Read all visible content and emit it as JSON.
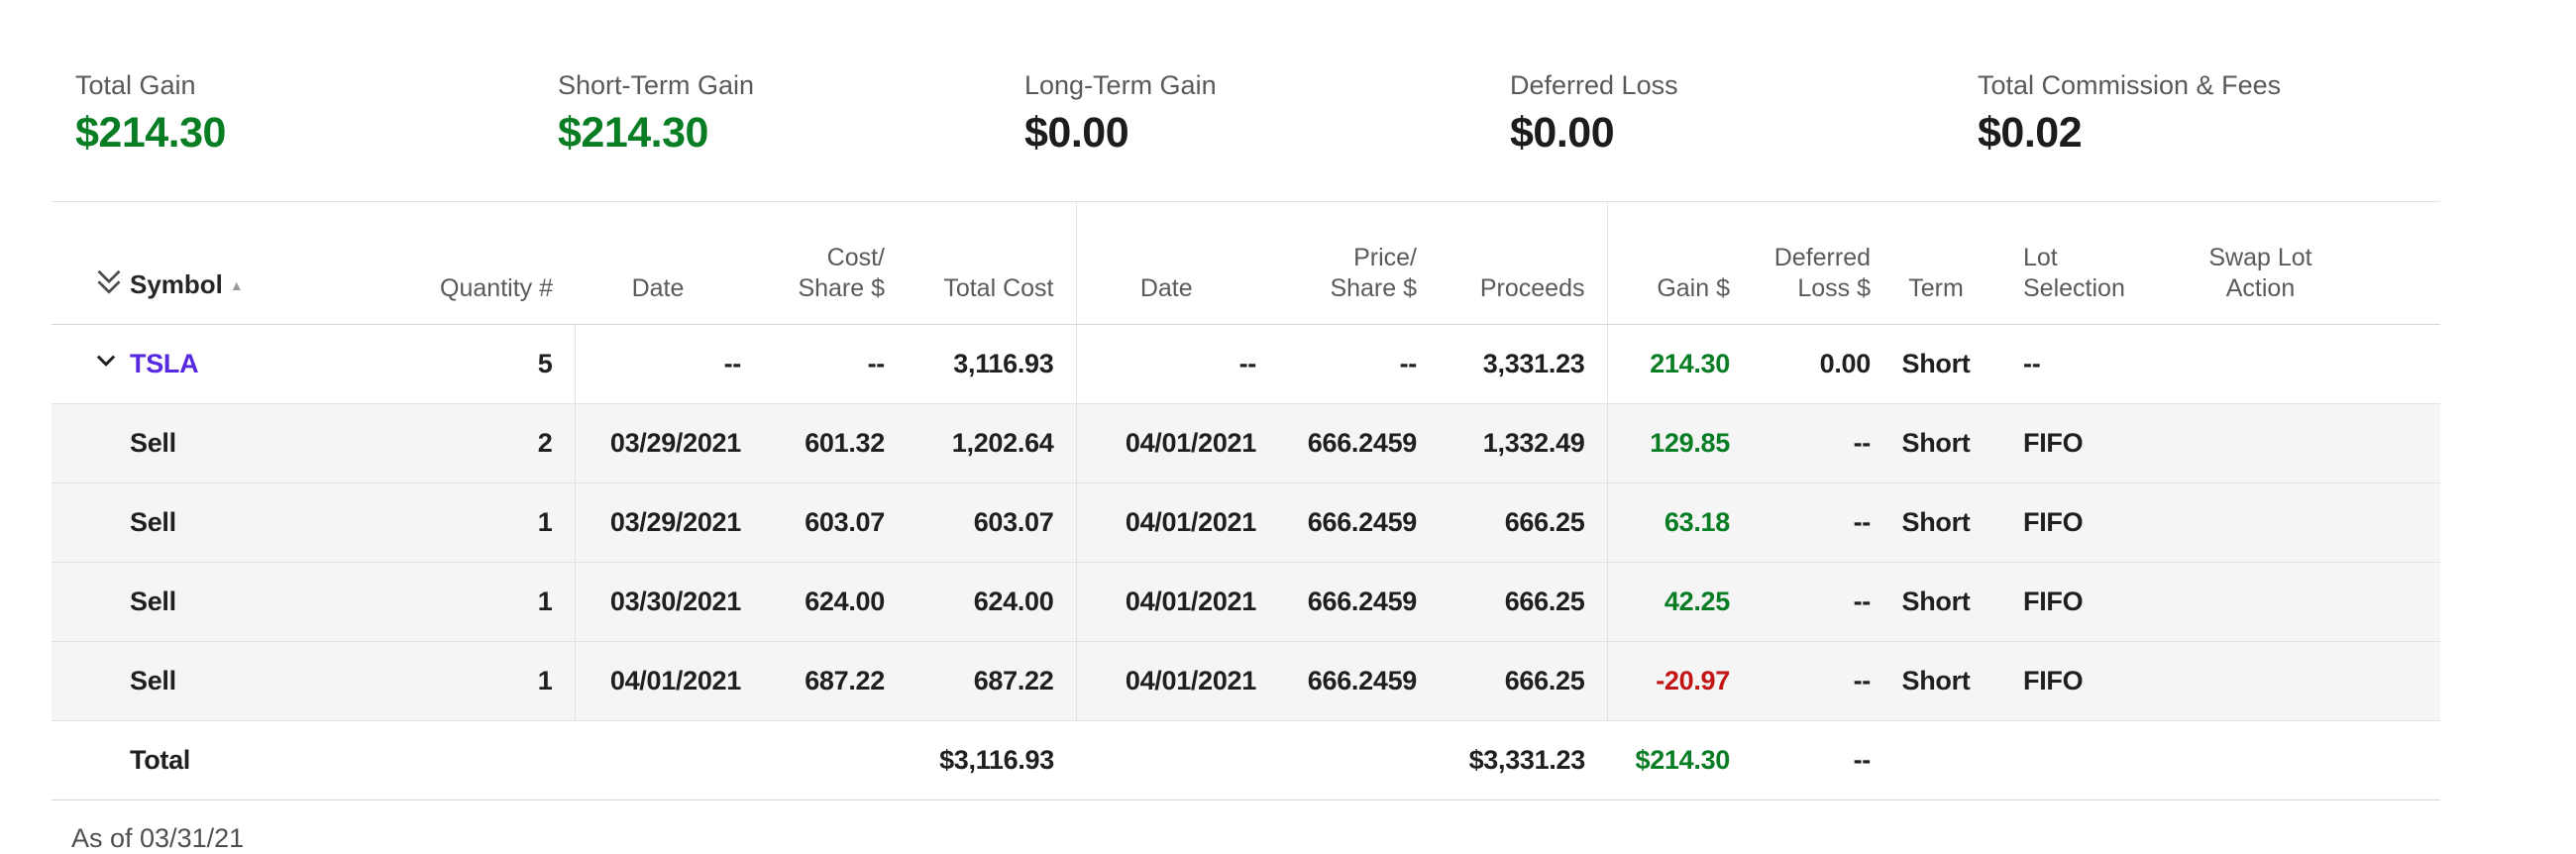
{
  "summary": {
    "items": [
      {
        "label": "Total Gain",
        "value": "$214.30",
        "tone": "positive"
      },
      {
        "label": "Short-Term Gain",
        "value": "$214.30",
        "tone": "positive"
      },
      {
        "label": "Long-Term Gain",
        "value": "$0.00",
        "tone": "neutral"
      },
      {
        "label": "Deferred Loss",
        "value": "$0.00",
        "tone": "neutral"
      },
      {
        "label": "Total Commission & Fees",
        "value": "$0.02",
        "tone": "neutral"
      }
    ]
  },
  "table": {
    "headers": [
      "Symbol",
      "Quantity #",
      "Date",
      "Cost/\nShare $",
      "Total Cost",
      "Date",
      "Price/\nShare $",
      "Proceeds",
      "Gain $",
      "Deferred\nLoss $",
      "Term",
      "Lot\nSelection",
      "Swap Lot\nAction"
    ],
    "sort": {
      "column": "Symbol",
      "direction": "asc"
    },
    "rows": [
      {
        "type": "symbol",
        "symbol": "TSLA",
        "expanded": true,
        "cells": [
          "TSLA",
          "5",
          "--",
          "--",
          "3,116.93",
          "--",
          "--",
          "3,331.23",
          "214.30",
          "0.00",
          "Short",
          "--",
          ""
        ],
        "gain_tone": "positive"
      },
      {
        "type": "lot",
        "cells": [
          "Sell",
          "2",
          "03/29/2021",
          "601.32",
          "1,202.64",
          "04/01/2021",
          "666.2459",
          "1,332.49",
          "129.85",
          "--",
          "Short",
          "FIFO",
          ""
        ],
        "gain_tone": "positive"
      },
      {
        "type": "lot",
        "cells": [
          "Sell",
          "1",
          "03/29/2021",
          "603.07",
          "603.07",
          "04/01/2021",
          "666.2459",
          "666.25",
          "63.18",
          "--",
          "Short",
          "FIFO",
          ""
        ],
        "gain_tone": "positive"
      },
      {
        "type": "lot",
        "cells": [
          "Sell",
          "1",
          "03/30/2021",
          "624.00",
          "624.00",
          "04/01/2021",
          "666.2459",
          "666.25",
          "42.25",
          "--",
          "Short",
          "FIFO",
          ""
        ],
        "gain_tone": "positive"
      },
      {
        "type": "lot",
        "cells": [
          "Sell",
          "1",
          "04/01/2021",
          "687.22",
          "687.22",
          "04/01/2021",
          "666.2459",
          "666.25",
          "-20.97",
          "--",
          "Short",
          "FIFO",
          ""
        ],
        "gain_tone": "negative"
      }
    ],
    "total_row": {
      "type": "total",
      "cells": [
        "Total",
        "",
        "",
        "",
        "$3,116.93",
        "",
        "",
        "$3,331.23",
        "$214.30",
        "--",
        "",
        "",
        ""
      ],
      "gain_tone": "positive"
    }
  },
  "footnote": "As of 03/31/21",
  "colors": {
    "positive": "#087D23",
    "negative": "#C21414",
    "symbol_link": "#5628E0"
  }
}
